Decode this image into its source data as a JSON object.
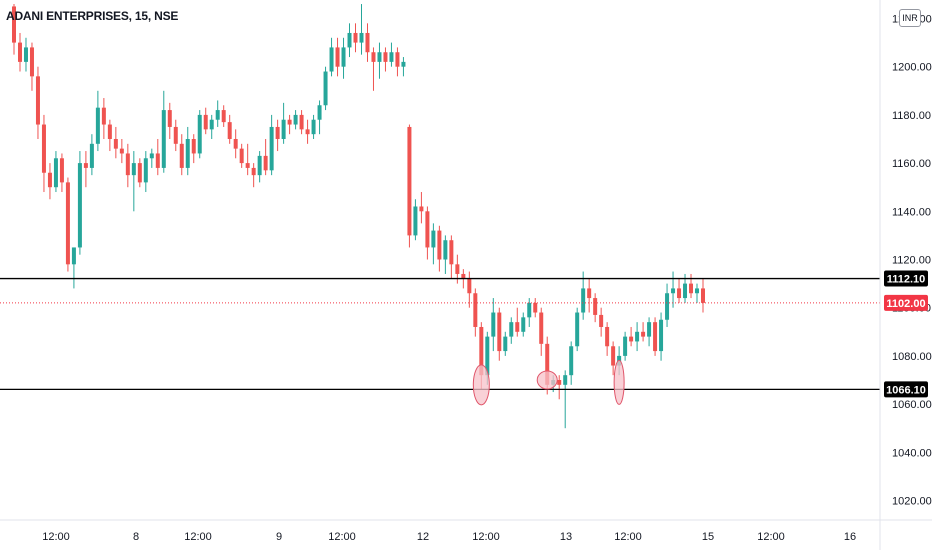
{
  "header": {
    "symbol_title": "ADANI ENTERPRISES, 15, NSE",
    "currency": "INR"
  },
  "colors": {
    "up": "#26a69a",
    "down": "#ef5350",
    "level_line": "#000000",
    "current_price": "#f23645",
    "marker_fill": "#f7c1c9",
    "marker_stroke": "#e0556a"
  },
  "chart_data": {
    "type": "candlestick",
    "title": "ADANI ENTERPRISES, 15, NSE",
    "ylim": [
      1010,
      1225
    ],
    "y_ticks": [
      "1020.00",
      "1040.00",
      "1060.00",
      "1080.00",
      "1100.00",
      "1120.00",
      "1140.00",
      "1160.00",
      "1180.00",
      "1200.00",
      "1220.00"
    ],
    "x_ticks": [
      "12:00",
      "8",
      "12:00",
      "9",
      "12:00",
      "12",
      "12:00",
      "13",
      "12:00",
      "15",
      "12:00",
      "16"
    ],
    "horizontal_levels": [
      {
        "label": "1112.10",
        "value": 1112.1
      },
      {
        "label": "1066.10",
        "value": 1066.1
      }
    ],
    "current_price": {
      "label": "1102.00",
      "value": 1102.0
    },
    "support_markers": [
      1068,
      1070,
      1069
    ],
    "candles": [
      [
        1225,
        1226,
        1205,
        1210
      ],
      [
        1210,
        1214,
        1198,
        1202
      ],
      [
        1202,
        1212,
        1198,
        1208
      ],
      [
        1208,
        1210,
        1190,
        1196
      ],
      [
        1196,
        1200,
        1170,
        1176
      ],
      [
        1176,
        1180,
        1148,
        1156
      ],
      [
        1156,
        1160,
        1145,
        1150
      ],
      [
        1150,
        1165,
        1148,
        1162
      ],
      [
        1162,
        1164,
        1148,
        1152
      ],
      [
        1152,
        1154,
        1115,
        1118
      ],
      [
        1118,
        1125,
        1108,
        1125
      ],
      [
        1125,
        1165,
        1122,
        1160
      ],
      [
        1160,
        1165,
        1150,
        1158
      ],
      [
        1158,
        1172,
        1155,
        1168
      ],
      [
        1168,
        1190,
        1165,
        1183
      ],
      [
        1183,
        1187,
        1170,
        1176
      ],
      [
        1176,
        1178,
        1165,
        1170
      ],
      [
        1170,
        1175,
        1162,
        1166
      ],
      [
        1166,
        1170,
        1160,
        1164
      ],
      [
        1164,
        1168,
        1150,
        1155
      ],
      [
        1155,
        1165,
        1140,
        1160
      ],
      [
        1160,
        1162,
        1150,
        1152
      ],
      [
        1152,
        1165,
        1148,
        1162
      ],
      [
        1162,
        1166,
        1158,
        1164
      ],
      [
        1164,
        1170,
        1155,
        1158
      ],
      [
        1158,
        1190,
        1156,
        1182
      ],
      [
        1182,
        1185,
        1170,
        1175
      ],
      [
        1175,
        1178,
        1165,
        1168
      ],
      [
        1168,
        1172,
        1155,
        1158
      ],
      [
        1158,
        1175,
        1155,
        1170
      ],
      [
        1170,
        1172,
        1160,
        1164
      ],
      [
        1164,
        1182,
        1162,
        1180
      ],
      [
        1180,
        1183,
        1172,
        1174
      ],
      [
        1174,
        1180,
        1170,
        1178
      ],
      [
        1178,
        1186,
        1175,
        1182
      ],
      [
        1182,
        1184,
        1175,
        1177
      ],
      [
        1177,
        1180,
        1168,
        1170
      ],
      [
        1170,
        1174,
        1162,
        1166
      ],
      [
        1166,
        1168,
        1158,
        1160
      ],
      [
        1160,
        1168,
        1155,
        1158
      ],
      [
        1158,
        1160,
        1150,
        1155
      ],
      [
        1155,
        1165,
        1152,
        1163
      ],
      [
        1163,
        1170,
        1155,
        1157
      ],
      [
        1157,
        1180,
        1155,
        1175
      ],
      [
        1175,
        1178,
        1165,
        1170
      ],
      [
        1170,
        1185,
        1168,
        1178
      ],
      [
        1178,
        1180,
        1172,
        1176
      ],
      [
        1176,
        1182,
        1174,
        1180
      ],
      [
        1180,
        1182,
        1172,
        1174
      ],
      [
        1174,
        1178,
        1168,
        1172
      ],
      [
        1172,
        1180,
        1170,
        1178
      ],
      [
        1178,
        1186,
        1172,
        1184
      ],
      [
        1184,
        1200,
        1182,
        1198
      ],
      [
        1198,
        1212,
        1196,
        1208
      ],
      [
        1208,
        1212,
        1196,
        1200
      ],
      [
        1200,
        1212,
        1195,
        1208
      ],
      [
        1208,
        1218,
        1204,
        1214
      ],
      [
        1214,
        1218,
        1206,
        1210
      ],
      [
        1210,
        1226,
        1205,
        1214
      ],
      [
        1214,
        1218,
        1202,
        1206
      ],
      [
        1206,
        1208,
        1190,
        1202
      ],
      [
        1202,
        1210,
        1195,
        1206
      ],
      [
        1206,
        1208,
        1198,
        1202
      ],
      [
        1202,
        1210,
        1200,
        1206
      ],
      [
        1206,
        1208,
        1196,
        1200
      ],
      [
        1200,
        1204,
        1196,
        1202
      ],
      [
        1175,
        1176,
        1125,
        1130
      ],
      [
        1130,
        1145,
        1128,
        1142
      ],
      [
        1142,
        1148,
        1135,
        1140
      ],
      [
        1140,
        1142,
        1120,
        1125
      ],
      [
        1125,
        1135,
        1118,
        1132
      ],
      [
        1132,
        1134,
        1115,
        1120
      ],
      [
        1120,
        1130,
        1114,
        1128
      ],
      [
        1128,
        1130,
        1112,
        1118
      ],
      [
        1118,
        1122,
        1110,
        1114
      ],
      [
        1114,
        1116,
        1108,
        1112
      ],
      [
        1112,
        1115,
        1100,
        1106
      ],
      [
        1106,
        1108,
        1088,
        1092
      ],
      [
        1092,
        1094,
        1066,
        1072
      ],
      [
        1072,
        1090,
        1068,
        1088
      ],
      [
        1088,
        1104,
        1082,
        1098
      ],
      [
        1098,
        1100,
        1078,
        1082
      ],
      [
        1082,
        1090,
        1080,
        1088
      ],
      [
        1088,
        1096,
        1085,
        1094
      ],
      [
        1094,
        1100,
        1088,
        1090
      ],
      [
        1090,
        1098,
        1088,
        1096
      ],
      [
        1096,
        1104,
        1092,
        1102
      ],
      [
        1102,
        1104,
        1096,
        1098
      ],
      [
        1098,
        1100,
        1080,
        1085
      ],
      [
        1085,
        1088,
        1064,
        1068
      ],
      [
        1068,
        1072,
        1065,
        1070
      ],
      [
        1070,
        1072,
        1062,
        1068
      ],
      [
        1068,
        1074,
        1050,
        1072
      ],
      [
        1072,
        1086,
        1068,
        1084
      ],
      [
        1084,
        1100,
        1082,
        1098
      ],
      [
        1098,
        1115,
        1095,
        1108
      ],
      [
        1108,
        1112,
        1098,
        1104
      ],
      [
        1104,
        1106,
        1094,
        1097
      ],
      [
        1097,
        1100,
        1088,
        1092
      ],
      [
        1092,
        1094,
        1080,
        1084
      ],
      [
        1084,
        1086,
        1072,
        1076
      ],
      [
        1076,
        1084,
        1072,
        1080
      ],
      [
        1080,
        1090,
        1078,
        1088
      ],
      [
        1088,
        1092,
        1084,
        1086
      ],
      [
        1086,
        1094,
        1082,
        1090
      ],
      [
        1090,
        1094,
        1086,
        1088
      ],
      [
        1088,
        1096,
        1084,
        1094
      ],
      [
        1094,
        1096,
        1080,
        1082
      ],
      [
        1082,
        1098,
        1078,
        1095
      ],
      [
        1095,
        1110,
        1092,
        1106
      ],
      [
        1106,
        1115,
        1100,
        1108
      ],
      [
        1108,
        1112,
        1102,
        1104
      ],
      [
        1104,
        1114,
        1102,
        1110
      ],
      [
        1110,
        1114,
        1104,
        1106
      ],
      [
        1106,
        1110,
        1102,
        1108
      ],
      [
        1108,
        1112,
        1098,
        1102
      ]
    ]
  }
}
